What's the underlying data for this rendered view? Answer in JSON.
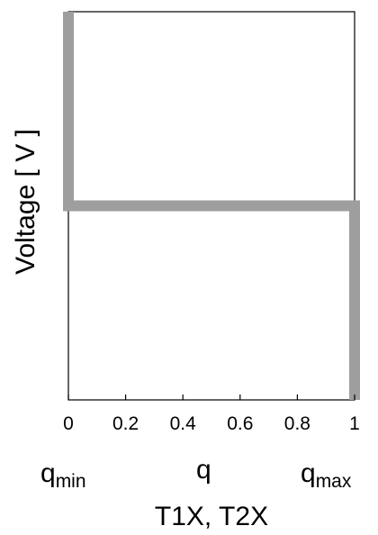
{
  "chart_data": {
    "type": "line",
    "title": "",
    "xlabel": "T1X, T2X",
    "ylabel": "Voltage [ V ]",
    "xlim": [
      0,
      1
    ],
    "x_ticks": [
      "0",
      "0.2",
      "0.4",
      "0.6",
      "0.8",
      "1"
    ],
    "q_labels": {
      "min": {
        "base": "q",
        "sub": "min"
      },
      "mid": {
        "base": "q"
      },
      "max": {
        "base": "q",
        "sub": "max"
      }
    },
    "series": [
      {
        "color": "#9e9e9e",
        "points": [
          {
            "x": 0,
            "y": 1
          },
          {
            "x": 0,
            "y": 0.5
          },
          {
            "x": 1,
            "y": 0.5
          },
          {
            "x": 1,
            "y": 0
          }
        ]
      }
    ],
    "ylim": [
      0,
      1
    ],
    "grid": false
  }
}
